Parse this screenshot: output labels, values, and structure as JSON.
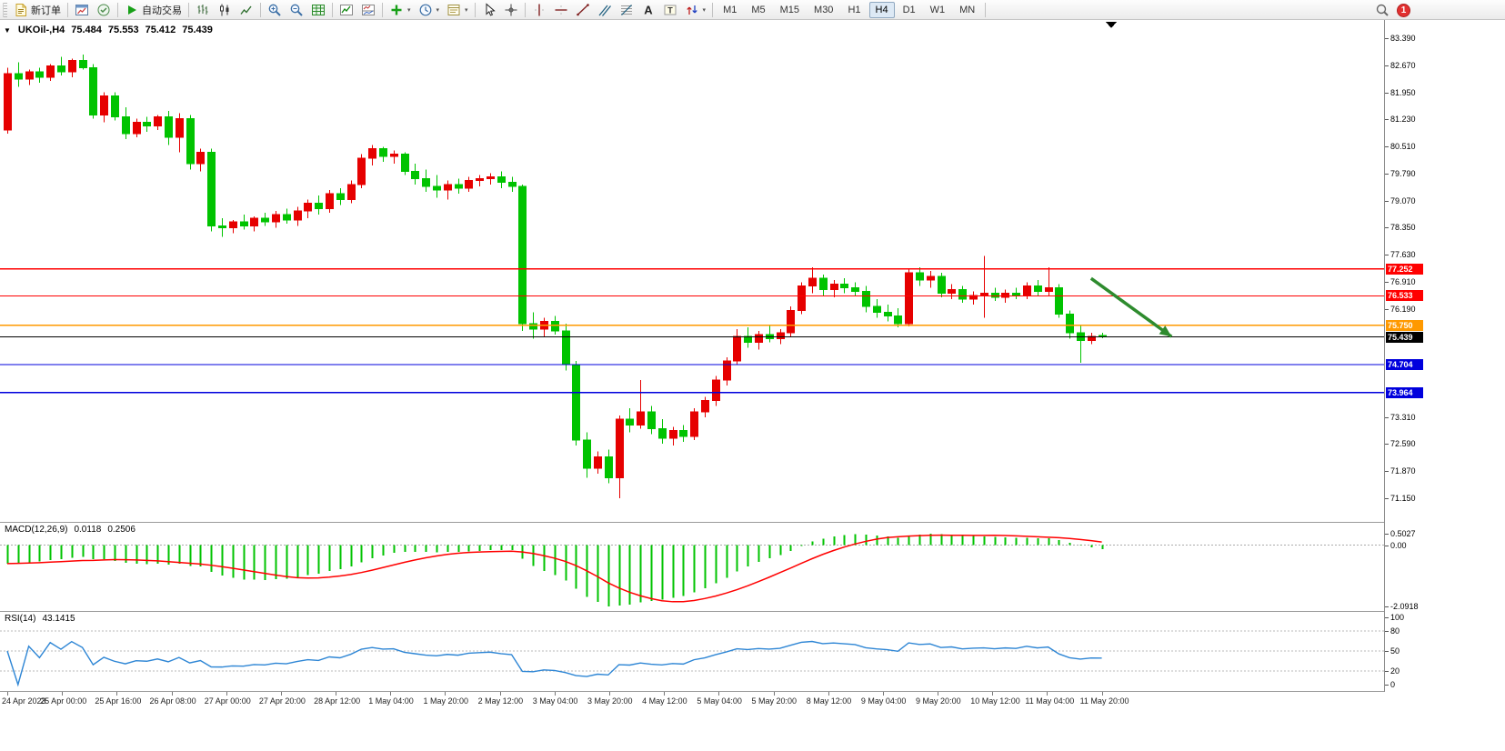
{
  "toolbar": {
    "notification_count": "1",
    "timeframes": {
      "options": [
        "M1",
        "M5",
        "M15",
        "M30",
        "H1",
        "H4",
        "D1",
        "W1",
        "MN"
      ],
      "active": "H4"
    },
    "groups": [
      {
        "items": [
          {
            "name": "new-order-button",
            "icon": "new-order-icon",
            "label": "新订单"
          }
        ]
      },
      {
        "items": [
          {
            "name": "new-chart-button",
            "icon": "new-chart-icon"
          },
          {
            "name": "profiles-button",
            "icon": "profiles-icon"
          }
        ]
      },
      {
        "items": [
          {
            "name": "autotrading-button",
            "icon": "autotrading-icon",
            "label": "自动交易"
          }
        ]
      },
      {
        "items": [
          {
            "name": "bar-chart-button",
            "icon": "bars-chart-icon"
          },
          {
            "name": "candlestick-chart-button",
            "icon": "candlestick-chart-icon"
          },
          {
            "name": "line-chart-button",
            "icon": "line-chart-icon"
          }
        ]
      },
      {
        "items": [
          {
            "name": "zoom-in-button",
            "icon": "zoom-in-icon"
          },
          {
            "name": "zoom-out-button",
            "icon": "zoom-out-icon"
          },
          {
            "name": "grid-button",
            "icon": "grid-icon"
          }
        ]
      },
      {
        "items": [
          {
            "name": "indicators-button",
            "icon": "indicators-icon"
          },
          {
            "name": "indicator-windows-button",
            "icon": "indicator-windows-icon"
          }
        ]
      },
      {
        "items": [
          {
            "name": "add-indicator-button",
            "icon": "add-indicator-icon",
            "dropdown": true
          },
          {
            "name": "periods-button",
            "icon": "clock-icon",
            "dropdown": true
          },
          {
            "name": "templates-button",
            "icon": "template-icon",
            "dropdown": true
          }
        ]
      },
      {
        "items": [
          {
            "name": "cursor-button",
            "icon": "cursor-icon"
          },
          {
            "name": "crosshair-button",
            "icon": "crosshair-icon"
          }
        ]
      },
      {
        "items": [
          {
            "name": "vertical-line-button",
            "icon": "vertical-line-icon"
          },
          {
            "name": "horizontal-line-button",
            "icon": "horizontal-line-icon"
          },
          {
            "name": "trendline-button",
            "icon": "trendline-icon"
          },
          {
            "name": "equidistant-channel-button",
            "icon": "channel-icon"
          },
          {
            "name": "fibonacci-button",
            "icon": "fibonacci-icon"
          },
          {
            "name": "text-button",
            "icon": "text-icon"
          },
          {
            "name": "text-label-button",
            "icon": "text-label-icon"
          },
          {
            "name": "arrows-button",
            "icon": "arrows-icon",
            "dropdown": true
          }
        ]
      }
    ]
  },
  "chart": {
    "symbol_period": "UKOil-,H4",
    "open": "75.484",
    "high": "75.553",
    "low": "75.412",
    "close": "75.439"
  },
  "indicators": {
    "macd": {
      "label": "MACD(12,26,9)",
      "value_main": "0.0118",
      "value_signal": "0.2506"
    },
    "rsi": {
      "label": "RSI(14)",
      "value": "43.1415"
    }
  },
  "chart_data": [
    {
      "type": "candlestick",
      "symbol": "UKOil-",
      "period": "H4",
      "bull_color": "#e60000",
      "bear_color": "#00c300",
      "ylim": [
        71.15,
        83.39
      ],
      "grid": false,
      "y_ticks": [
        "83.390",
        "82.670",
        "81.950",
        "81.230",
        "80.510",
        "79.790",
        "79.070",
        "78.350",
        "77.630",
        "76.910",
        "76.190",
        "73.310",
        "72.590",
        "71.870",
        "71.150"
      ],
      "x_labels": [
        "24 Apr 2023",
        "25 Apr 00:00",
        "25 Apr 16:00",
        "26 Apr 08:00",
        "27 Apr 00:00",
        "27 Apr 20:00",
        "28 Apr 12:00",
        "1 May 04:00",
        "1 May 20:00",
        "2 May 12:00",
        "3 May 04:00",
        "3 May 20:00",
        "4 May 12:00",
        "5 May 04:00",
        "5 May 20:00",
        "8 May 12:00",
        "9 May 04:00",
        "9 May 20:00",
        "10 May 12:00",
        "11 May 04:00",
        "11 May 20:00"
      ],
      "hlines": [
        {
          "price": 77.252,
          "color": "#ff0000",
          "label": "77.252"
        },
        {
          "price": 76.533,
          "color": "#ff0000",
          "label": "76.533"
        },
        {
          "price": 75.75,
          "color": "#ff9900",
          "label": "75.750"
        },
        {
          "price": 75.439,
          "color": "#000000",
          "label": "75.439",
          "current": true
        },
        {
          "price": 74.704,
          "color": "#0000dd",
          "label": "74.704"
        },
        {
          "price": 73.964,
          "color": "#0000dd",
          "label": "73.964"
        }
      ],
      "arrow": {
        "from_index": 101,
        "from_price": 77.0,
        "to_index": 108.5,
        "to_price": 75.45,
        "color": "#2e8b2e"
      },
      "ohlc": [
        [
          80.95,
          82.6,
          80.85,
          82.45
        ],
        [
          82.45,
          82.75,
          82.1,
          82.3
        ],
        [
          82.3,
          82.55,
          82.15,
          82.5
        ],
        [
          82.5,
          82.6,
          82.2,
          82.35
        ],
        [
          82.35,
          82.7,
          82.25,
          82.65
        ],
        [
          82.65,
          82.9,
          82.4,
          82.5
        ],
        [
          82.5,
          82.85,
          82.35,
          82.8
        ],
        [
          82.8,
          82.95,
          82.55,
          82.6
        ],
        [
          82.6,
          82.7,
          81.25,
          81.35
        ],
        [
          81.35,
          81.95,
          81.15,
          81.85
        ],
        [
          81.85,
          81.95,
          81.2,
          81.3
        ],
        [
          81.3,
          81.55,
          80.7,
          80.85
        ],
        [
          80.85,
          81.25,
          80.75,
          81.15
        ],
        [
          81.15,
          81.3,
          80.9,
          81.05
        ],
        [
          81.05,
          81.35,
          80.95,
          81.3
        ],
        [
          81.3,
          81.45,
          80.55,
          80.75
        ],
        [
          80.75,
          81.4,
          80.35,
          81.25
        ],
        [
          81.25,
          81.35,
          79.9,
          80.05
        ],
        [
          80.05,
          80.45,
          79.85,
          80.35
        ],
        [
          80.35,
          80.45,
          78.25,
          78.4
        ],
        [
          78.4,
          78.6,
          78.1,
          78.35
        ],
        [
          78.35,
          78.55,
          78.2,
          78.5
        ],
        [
          78.5,
          78.7,
          78.3,
          78.4
        ],
        [
          78.4,
          78.65,
          78.25,
          78.6
        ],
        [
          78.6,
          78.75,
          78.4,
          78.5
        ],
        [
          78.5,
          78.8,
          78.35,
          78.7
        ],
        [
          78.7,
          78.85,
          78.45,
          78.55
        ],
        [
          78.55,
          78.9,
          78.4,
          78.8
        ],
        [
          78.8,
          79.1,
          78.6,
          79.0
        ],
        [
          79.0,
          79.2,
          78.7,
          78.85
        ],
        [
          78.85,
          79.35,
          78.75,
          79.25
        ],
        [
          79.25,
          79.4,
          78.95,
          79.1
        ],
        [
          79.1,
          79.6,
          79.0,
          79.5
        ],
        [
          79.5,
          80.3,
          79.4,
          80.2
        ],
        [
          80.2,
          80.55,
          80.0,
          80.45
        ],
        [
          80.45,
          80.5,
          80.1,
          80.25
        ],
        [
          80.25,
          80.4,
          80.05,
          80.3
        ],
        [
          80.3,
          80.35,
          79.75,
          79.85
        ],
        [
          79.85,
          80.05,
          79.5,
          79.65
        ],
        [
          79.65,
          79.9,
          79.3,
          79.45
        ],
        [
          79.45,
          79.75,
          79.15,
          79.35
        ],
        [
          79.35,
          79.6,
          79.1,
          79.5
        ],
        [
          79.5,
          79.65,
          79.25,
          79.4
        ],
        [
          79.4,
          79.7,
          79.3,
          79.6
        ],
        [
          79.6,
          79.75,
          79.45,
          79.65
        ],
        [
          79.65,
          79.8,
          79.5,
          79.7
        ],
        [
          79.7,
          79.85,
          79.4,
          79.55
        ],
        [
          79.55,
          79.7,
          79.3,
          79.45
        ],
        [
          79.45,
          79.5,
          75.6,
          75.8
        ],
        [
          75.8,
          76.1,
          75.4,
          75.65
        ],
        [
          75.65,
          75.95,
          75.45,
          75.85
        ],
        [
          75.85,
          76.0,
          75.5,
          75.6
        ],
        [
          75.6,
          75.8,
          74.55,
          74.7
        ],
        [
          74.7,
          74.8,
          72.55,
          72.7
        ],
        [
          72.7,
          72.9,
          71.7,
          71.95
        ],
        [
          71.95,
          72.4,
          71.8,
          72.25
        ],
        [
          72.25,
          72.45,
          71.55,
          71.7
        ],
        [
          71.7,
          73.35,
          71.15,
          73.25
        ],
        [
          73.25,
          73.55,
          72.9,
          73.1
        ],
        [
          73.1,
          74.3,
          73.0,
          73.45
        ],
        [
          73.45,
          73.6,
          72.85,
          73.0
        ],
        [
          73.0,
          73.25,
          72.6,
          72.75
        ],
        [
          72.75,
          73.05,
          72.55,
          72.95
        ],
        [
          72.95,
          73.1,
          72.65,
          72.8
        ],
        [
          72.8,
          73.55,
          72.7,
          73.45
        ],
        [
          73.45,
          73.85,
          73.3,
          73.75
        ],
        [
          73.75,
          74.4,
          73.6,
          74.3
        ],
        [
          74.3,
          74.9,
          74.15,
          74.8
        ],
        [
          74.8,
          75.65,
          74.7,
          75.45
        ],
        [
          75.45,
          75.7,
          75.15,
          75.3
        ],
        [
          75.3,
          75.6,
          75.1,
          75.5
        ],
        [
          75.5,
          75.75,
          75.3,
          75.4
        ],
        [
          75.4,
          75.65,
          75.25,
          75.55
        ],
        [
          75.55,
          76.25,
          75.45,
          76.15
        ],
        [
          76.15,
          76.9,
          76.05,
          76.8
        ],
        [
          76.8,
          77.3,
          76.6,
          77.0
        ],
        [
          77.0,
          77.1,
          76.55,
          76.7
        ],
        [
          76.7,
          76.95,
          76.5,
          76.85
        ],
        [
          76.85,
          77.0,
          76.6,
          76.75
        ],
        [
          76.75,
          76.9,
          76.55,
          76.65
        ],
        [
          76.65,
          76.8,
          76.1,
          76.25
        ],
        [
          76.25,
          76.45,
          75.95,
          76.1
        ],
        [
          76.1,
          76.3,
          75.85,
          76.0
        ],
        [
          76.0,
          76.2,
          75.7,
          75.8
        ],
        [
          75.8,
          77.25,
          75.72,
          77.15
        ],
        [
          77.15,
          77.3,
          76.8,
          76.95
        ],
        [
          76.95,
          77.2,
          76.75,
          77.05
        ],
        [
          77.05,
          77.15,
          76.5,
          76.6
        ],
        [
          76.6,
          76.85,
          76.45,
          76.7
        ],
        [
          76.7,
          76.8,
          76.35,
          76.45
        ],
        [
          76.45,
          76.65,
          76.3,
          76.55
        ],
        [
          76.55,
          77.6,
          75.95,
          76.6
        ],
        [
          76.6,
          76.75,
          76.4,
          76.5
        ],
        [
          76.5,
          76.7,
          76.35,
          76.6
        ],
        [
          76.6,
          76.75,
          76.45,
          76.55
        ],
        [
          76.55,
          76.9,
          76.45,
          76.8
        ],
        [
          76.8,
          76.95,
          76.55,
          76.65
        ],
        [
          76.65,
          77.3,
          76.55,
          76.75
        ],
        [
          76.75,
          76.85,
          75.95,
          76.05
        ],
        [
          76.05,
          76.15,
          75.4,
          75.55
        ],
        [
          75.55,
          75.75,
          74.75,
          75.35
        ],
        [
          75.35,
          75.55,
          75.25,
          75.45
        ],
        [
          75.484,
          75.553,
          75.412,
          75.439
        ]
      ]
    },
    {
      "type": "macd",
      "label": "MACD(12,26,9)",
      "fast": 12,
      "slow": 26,
      "signal": 9,
      "source": "closes of chart_data[0]",
      "current_main": 0.0118,
      "current_signal": 0.2506,
      "y_ticks": [
        "0.5027",
        "0.00",
        "-2.0918"
      ],
      "histogram_color": "#00c300",
      "signal_color": "#ff0000"
    },
    {
      "type": "rsi",
      "label": "RSI(14)",
      "period": 14,
      "source": "closes of chart_data[0]",
      "current": 43.1415,
      "ylim": [
        0,
        100
      ],
      "levels": [
        80,
        50,
        20
      ],
      "y_ticks": [
        "100",
        "80",
        "50",
        "20",
        "0"
      ],
      "line_color": "#2e86d5"
    }
  ]
}
